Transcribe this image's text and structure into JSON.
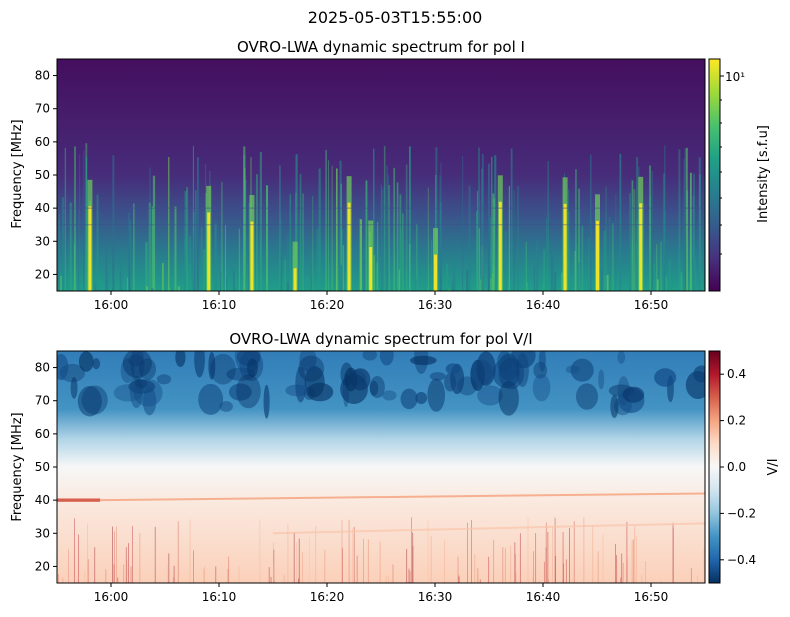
{
  "suptitle": "2025-05-03T15:55:00",
  "chart_data": [
    {
      "type": "heatmap",
      "title": "OVRO-LWA dynamic spectrum for pol I",
      "xlabel": "",
      "ylabel": "Frequency [MHz]",
      "xlim": [
        "15:55",
        "16:55"
      ],
      "ylim": [
        15,
        85
      ],
      "x_ticks": [
        "16:00",
        "16:10",
        "16:20",
        "16:30",
        "16:40",
        "16:50"
      ],
      "y_ticks": [
        20,
        30,
        40,
        50,
        60,
        70,
        80
      ],
      "colorbar": {
        "label": "Intensity [s.f.u]",
        "scale": "log",
        "colormap": "viridis",
        "tick_label": "10¹",
        "colors": [
          "#440154",
          "#46327e",
          "#365c8d",
          "#277f8e",
          "#1fa187",
          "#4ac16d",
          "#a0da39",
          "#fde725"
        ]
      },
      "features": {
        "background_low_freq": "#1f9e89",
        "background_high_freq": "#440f5e",
        "bright_burst_times": [
          "15:58",
          "16:09",
          "16:13",
          "16:17",
          "16:22",
          "16:24",
          "16:30",
          "16:36",
          "16:42",
          "16:45",
          "16:49"
        ]
      }
    },
    {
      "type": "heatmap",
      "title": "OVRO-LWA dynamic spectrum for pol V/I",
      "xlabel": "",
      "ylabel": "Frequency [MHz]",
      "xlim": [
        "15:55",
        "16:55"
      ],
      "ylim": [
        15,
        85
      ],
      "x_ticks": [
        "16:00",
        "16:10",
        "16:20",
        "16:30",
        "16:40",
        "16:50"
      ],
      "y_ticks": [
        20,
        30,
        40,
        50,
        60,
        70,
        80
      ],
      "colorbar": {
        "label": "V/I",
        "scale": "linear",
        "colormap": "RdBu_r",
        "range": [
          -0.5,
          0.5
        ],
        "ticks": [
          -0.4,
          -0.2,
          0.0,
          0.2,
          0.4
        ],
        "tick_labels": [
          "−0.4",
          "−0.2",
          "0.0",
          "0.2",
          "0.4"
        ],
        "colors": [
          "#053061",
          "#2166ac",
          "#4393c3",
          "#92c5de",
          "#d1e5f0",
          "#f7f7f7",
          "#fddbc7",
          "#f4a582",
          "#d6604d",
          "#b2182b",
          "#67001f"
        ]
      },
      "features": {
        "high_freq_value": -0.35,
        "mid_freq_value": 0.0,
        "low_freq_value": 0.12,
        "band_40MHz_value": 0.3
      }
    }
  ]
}
